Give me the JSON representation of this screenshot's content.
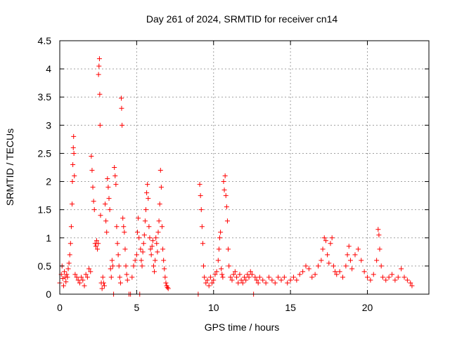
{
  "chart_data": {
    "type": "scatter",
    "title": "Day 261 of 2024, SRMTID for receiver cn14",
    "xlabel": "GPS time / hours",
    "ylabel": "SRMTID / TECUs",
    "xlim": [
      0,
      24
    ],
    "ylim": [
      0,
      4.5
    ],
    "x_ticks": [
      0,
      5,
      10,
      15,
      20
    ],
    "x_tick_labels": [
      "0",
      "5",
      "10",
      "15",
      "20"
    ],
    "y_ticks": [
      0,
      0.5,
      1,
      1.5,
      2,
      2.5,
      3,
      3.5,
      4,
      4.5
    ],
    "y_tick_labels": [
      "0",
      "0.5",
      "1",
      "1.5",
      "2",
      "2.5",
      "3",
      "3.5",
      "4",
      "4.5"
    ],
    "grid": true,
    "marker": "+",
    "color": "#ff0000",
    "series": [
      {
        "name": "SRMTID",
        "points": [
          [
            0.0,
            0.2
          ],
          [
            0.1,
            0.35
          ],
          [
            0.15,
            0.5
          ],
          [
            0.2,
            0.28
          ],
          [
            0.25,
            0.15
          ],
          [
            0.3,
            0.4
          ],
          [
            0.35,
            0.3
          ],
          [
            0.4,
            0.22
          ],
          [
            0.45,
            0.35
          ],
          [
            0.5,
            0.3
          ],
          [
            0.55,
            0.45
          ],
          [
            0.6,
            0.55
          ],
          [
            0.65,
            0.7
          ],
          [
            0.7,
            0.9
          ],
          [
            0.75,
            1.2
          ],
          [
            0.8,
            1.6
          ],
          [
            0.82,
            2.0
          ],
          [
            0.85,
            2.3
          ],
          [
            0.88,
            2.6
          ],
          [
            0.9,
            2.8
          ],
          [
            0.92,
            2.5
          ],
          [
            0.95,
            2.1
          ],
          [
            1.0,
            0.35
          ],
          [
            1.1,
            0.3
          ],
          [
            1.2,
            0.25
          ],
          [
            1.3,
            0.2
          ],
          [
            1.4,
            0.3
          ],
          [
            1.5,
            0.25
          ],
          [
            1.6,
            0.15
          ],
          [
            1.7,
            0.35
          ],
          [
            1.8,
            0.3
          ],
          [
            1.9,
            0.45
          ],
          [
            2.0,
            0.4
          ],
          [
            2.05,
            2.45
          ],
          [
            2.1,
            2.2
          ],
          [
            2.15,
            1.9
          ],
          [
            2.2,
            1.65
          ],
          [
            2.25,
            1.5
          ],
          [
            2.3,
            0.9
          ],
          [
            2.35,
            0.85
          ],
          [
            2.4,
            0.95
          ],
          [
            2.45,
            0.8
          ],
          [
            2.5,
            0.9
          ],
          [
            2.52,
            3.9
          ],
          [
            2.55,
            4.05
          ],
          [
            2.58,
            4.18
          ],
          [
            2.6,
            3.55
          ],
          [
            2.62,
            3.0
          ],
          [
            2.65,
            1.4
          ],
          [
            2.7,
            0.2
          ],
          [
            2.75,
            0.1
          ],
          [
            2.8,
            0.3
          ],
          [
            2.85,
            0.2
          ],
          [
            2.9,
            0.15
          ],
          [
            2.95,
            1.6
          ],
          [
            3.0,
            1.3
          ],
          [
            3.05,
            1.1
          ],
          [
            3.1,
            2.05
          ],
          [
            3.15,
            1.9
          ],
          [
            3.2,
            1.7
          ],
          [
            3.25,
            1.5
          ],
          [
            3.3,
            0.45
          ],
          [
            3.35,
            0.3
          ],
          [
            3.4,
            0.6
          ],
          [
            3.45,
            0.5
          ],
          [
            3.5,
            0.0
          ],
          [
            3.55,
            2.25
          ],
          [
            3.6,
            2.1
          ],
          [
            3.65,
            1.95
          ],
          [
            3.7,
            1.2
          ],
          [
            3.75,
            0.9
          ],
          [
            3.8,
            0.7
          ],
          [
            3.85,
            0.5
          ],
          [
            3.9,
            0.3
          ],
          [
            3.95,
            0.2
          ],
          [
            4.0,
            3.48
          ],
          [
            4.02,
            3.3
          ],
          [
            4.05,
            3.0
          ],
          [
            4.1,
            1.35
          ],
          [
            4.15,
            1.2
          ],
          [
            4.2,
            1.1
          ],
          [
            4.25,
            0.8
          ],
          [
            4.3,
            0.5
          ],
          [
            4.35,
            0.35
          ],
          [
            4.4,
            0.25
          ],
          [
            4.5,
            0.0
          ],
          [
            4.6,
            0.0
          ],
          [
            4.7,
            0.3
          ],
          [
            4.8,
            0.5
          ],
          [
            4.9,
            0.6
          ],
          [
            5.0,
            0.7
          ],
          [
            5.05,
            1.1
          ],
          [
            5.1,
            1.35
          ],
          [
            5.15,
            1.0
          ],
          [
            5.2,
            0.0
          ],
          [
            5.25,
            0.8
          ],
          [
            5.3,
            0.6
          ],
          [
            5.35,
            0.5
          ],
          [
            5.4,
            0.75
          ],
          [
            5.45,
            0.9
          ],
          [
            5.5,
            1.05
          ],
          [
            5.55,
            1.3
          ],
          [
            5.6,
            1.5
          ],
          [
            5.65,
            1.8
          ],
          [
            5.7,
            1.95
          ],
          [
            5.75,
            1.7
          ],
          [
            5.8,
            1.2
          ],
          [
            5.85,
            1.0
          ],
          [
            5.9,
            0.8
          ],
          [
            5.95,
            0.7
          ],
          [
            6.0,
            0.85
          ],
          [
            6.05,
            0.95
          ],
          [
            6.1,
            0.5
          ],
          [
            6.15,
            0.4
          ],
          [
            6.2,
            0.6
          ],
          [
            6.25,
            1.0
          ],
          [
            6.3,
            0.9
          ],
          [
            6.35,
            0.75
          ],
          [
            6.4,
            1.1
          ],
          [
            6.45,
            1.3
          ],
          [
            6.5,
            1.6
          ],
          [
            6.55,
            2.2
          ],
          [
            6.6,
            1.9
          ],
          [
            6.65,
            1.2
          ],
          [
            6.7,
            0.8
          ],
          [
            6.75,
            0.6
          ],
          [
            6.8,
            0.45
          ],
          [
            6.85,
            0.3
          ],
          [
            6.9,
            0.2
          ],
          [
            6.95,
            0.15
          ],
          [
            7.0,
            0.12
          ],
          [
            7.05,
            0.1
          ],
          [
            9.0,
            0.0
          ],
          [
            9.1,
            1.95
          ],
          [
            9.15,
            1.75
          ],
          [
            9.2,
            1.5
          ],
          [
            9.25,
            1.2
          ],
          [
            9.3,
            0.9
          ],
          [
            9.35,
            0.5
          ],
          [
            9.4,
            0.3
          ],
          [
            9.5,
            0.2
          ],
          [
            9.6,
            0.25
          ],
          [
            9.7,
            0.15
          ],
          [
            9.8,
            0.3
          ],
          [
            9.9,
            0.2
          ],
          [
            10.0,
            0.25
          ],
          [
            10.1,
            0.35
          ],
          [
            10.2,
            0.4
          ],
          [
            10.3,
            0.6
          ],
          [
            10.35,
            0.8
          ],
          [
            10.4,
            1.0
          ],
          [
            10.45,
            1.1
          ],
          [
            10.5,
            0.45
          ],
          [
            10.55,
            0.35
          ],
          [
            10.6,
            0.3
          ],
          [
            10.65,
            2.0
          ],
          [
            10.7,
            1.85
          ],
          [
            10.75,
            2.1
          ],
          [
            10.8,
            1.75
          ],
          [
            10.85,
            1.55
          ],
          [
            10.9,
            1.3
          ],
          [
            10.95,
            0.8
          ],
          [
            11.0,
            0.5
          ],
          [
            11.1,
            0.3
          ],
          [
            11.2,
            0.25
          ],
          [
            11.3,
            0.35
          ],
          [
            11.4,
            0.4
          ],
          [
            11.5,
            0.3
          ],
          [
            11.6,
            0.2
          ],
          [
            11.7,
            0.35
          ],
          [
            11.8,
            0.25
          ],
          [
            11.9,
            0.2
          ],
          [
            12.0,
            0.3
          ],
          [
            12.1,
            0.25
          ],
          [
            12.2,
            0.35
          ],
          [
            12.3,
            0.3
          ],
          [
            12.4,
            0.4
          ],
          [
            12.5,
            0.35
          ],
          [
            12.6,
            0.0
          ],
          [
            12.7,
            0.3
          ],
          [
            12.8,
            0.25
          ],
          [
            12.9,
            0.2
          ],
          [
            13.0,
            0.3
          ],
          [
            13.2,
            0.25
          ],
          [
            13.4,
            0.2
          ],
          [
            13.6,
            0.3
          ],
          [
            13.8,
            0.25
          ],
          [
            14.0,
            0.2
          ],
          [
            14.2,
            0.3
          ],
          [
            14.4,
            0.25
          ],
          [
            14.6,
            0.3
          ],
          [
            14.8,
            0.2
          ],
          [
            15.0,
            0.25
          ],
          [
            15.2,
            0.3
          ],
          [
            15.4,
            0.25
          ],
          [
            15.6,
            0.35
          ],
          [
            15.8,
            0.4
          ],
          [
            16.0,
            0.5
          ],
          [
            16.2,
            0.45
          ],
          [
            16.4,
            0.3
          ],
          [
            16.6,
            0.35
          ],
          [
            16.8,
            0.5
          ],
          [
            17.0,
            0.6
          ],
          [
            17.1,
            0.8
          ],
          [
            17.2,
            1.0
          ],
          [
            17.3,
            0.95
          ],
          [
            17.4,
            0.7
          ],
          [
            17.5,
            0.55
          ],
          [
            17.6,
            0.9
          ],
          [
            17.7,
            1.0
          ],
          [
            17.8,
            0.5
          ],
          [
            17.9,
            0.4
          ],
          [
            18.0,
            0.35
          ],
          [
            18.2,
            0.4
          ],
          [
            18.4,
            0.3
          ],
          [
            18.6,
            0.5
          ],
          [
            18.7,
            0.7
          ],
          [
            18.8,
            0.85
          ],
          [
            18.9,
            0.6
          ],
          [
            19.0,
            0.45
          ],
          [
            19.2,
            0.7
          ],
          [
            19.4,
            0.8
          ],
          [
            19.6,
            0.6
          ],
          [
            19.8,
            0.4
          ],
          [
            20.0,
            0.3
          ],
          [
            20.2,
            0.25
          ],
          [
            20.4,
            0.35
          ],
          [
            20.6,
            0.6
          ],
          [
            20.7,
            1.15
          ],
          [
            20.75,
            1.05
          ],
          [
            20.8,
            0.8
          ],
          [
            20.9,
            0.5
          ],
          [
            21.0,
            0.3
          ],
          [
            21.2,
            0.25
          ],
          [
            21.4,
            0.3
          ],
          [
            21.6,
            0.35
          ],
          [
            21.8,
            0.25
          ],
          [
            22.0,
            0.3
          ],
          [
            22.2,
            0.45
          ],
          [
            22.4,
            0.3
          ],
          [
            22.6,
            0.25
          ],
          [
            22.8,
            0.2
          ],
          [
            22.9,
            0.15
          ]
        ]
      }
    ]
  }
}
